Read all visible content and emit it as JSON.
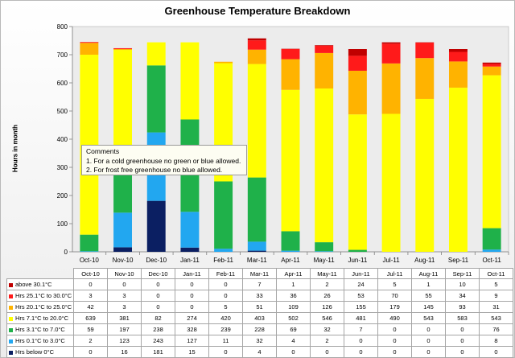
{
  "chart_data": {
    "type": "bar",
    "stacked": true,
    "title": "Greenhouse Temperature Breakdown",
    "ylabel": "Hours in month",
    "ylim": [
      0,
      800
    ],
    "yticks": [
      0,
      100,
      200,
      300,
      400,
      500,
      600,
      700,
      800
    ],
    "grid": false,
    "legend": "table",
    "categories": [
      "Oct-10",
      "Nov-10",
      "Dec-10",
      "Jan-11",
      "Feb-11",
      "Mar-11",
      "Apr-11",
      "May-11",
      "Jun-11",
      "Jul-11",
      "Aug-11",
      "Sep-11",
      "Oct-11"
    ],
    "series": [
      {
        "name": "Hrs below 0°C",
        "color": "#0b1f62",
        "values": [
          0,
          16,
          181,
          15,
          0,
          4,
          0,
          0,
          0,
          0,
          0,
          0,
          0
        ]
      },
      {
        "name": "Hrs 0.1°C to 3.0°C",
        "color": "#22a7f0",
        "values": [
          2,
          123,
          243,
          127,
          11,
          32,
          4,
          2,
          0,
          0,
          0,
          0,
          8
        ]
      },
      {
        "name": "Hrs 3.1°C to 7.0°C",
        "color": "#1fb14a",
        "values": [
          59,
          197,
          238,
          328,
          239,
          228,
          69,
          32,
          7,
          0,
          0,
          0,
          76
        ]
      },
      {
        "name": "Hrs 7.1°C to 20.0°C",
        "color": "#ffff00",
        "values": [
          639,
          381,
          82,
          274,
          420,
          403,
          502,
          546,
          481,
          490,
          543,
          583,
          543
        ]
      },
      {
        "name": "Hrs 20.1°C to 25.0°C",
        "color": "#ffb300",
        "values": [
          42,
          3,
          0,
          0,
          5,
          51,
          109,
          126,
          155,
          179,
          145,
          93,
          31
        ]
      },
      {
        "name": "Hrs 25.1°C to 30.0°C",
        "color": "#ff1a1a",
        "values": [
          3,
          3,
          0,
          0,
          0,
          33,
          36,
          26,
          53,
          70,
          55,
          34,
          9
        ]
      },
      {
        "name": "above 30.1°C",
        "color": "#c00000",
        "values": [
          0,
          0,
          0,
          0,
          0,
          7,
          1,
          2,
          24,
          5,
          1,
          10,
          5
        ]
      }
    ]
  },
  "comments": {
    "title": "Comments",
    "line1": "1. For a cold greenhouse no green or blue allowed.",
    "line2": "2. For frost free greenhouse no blue allowed."
  }
}
